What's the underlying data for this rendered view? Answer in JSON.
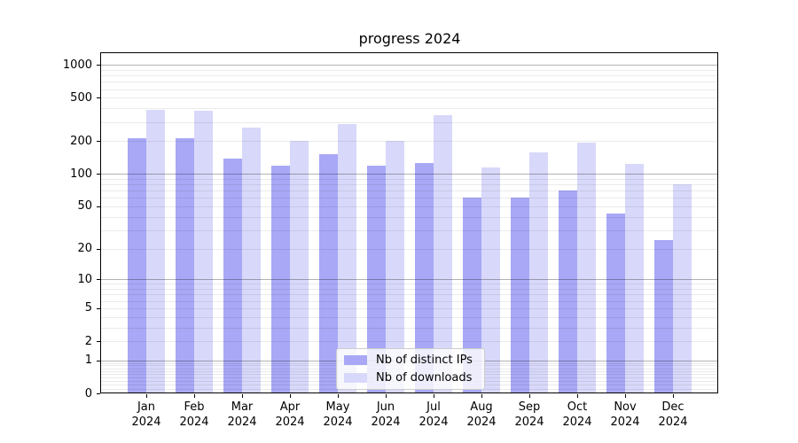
{
  "chart_data": {
    "type": "bar",
    "title": "progress 2024",
    "scale": "log1p",
    "grid": {
      "on": true,
      "major_color": "#b0b0b0",
      "minor_color": "#ebebeb"
    },
    "x_axis": {
      "categories": [
        "Jan",
        "Feb",
        "Mar",
        "Apr",
        "May",
        "Jun",
        "Jul",
        "Aug",
        "Sep",
        "Oct",
        "Nov",
        "Dec"
      ],
      "year_label": "2024"
    },
    "y_axis": {
      "ticks": [
        1000,
        500,
        200,
        100,
        50,
        20,
        10,
        5,
        2,
        1,
        0
      ],
      "range": [
        0,
        1280
      ]
    },
    "series": [
      {
        "name": "Nb of distinct IPs",
        "color": "#a8a8f6",
        "values": [
          213,
          213,
          139,
          120,
          151,
          119,
          125,
          61,
          61,
          70,
          43,
          24
        ]
      },
      {
        "name": "Nb of downloads",
        "color": "#d8d8fa",
        "values": [
          390,
          378,
          268,
          203,
          288,
          200,
          345,
          115,
          159,
          193,
          123,
          81
        ]
      }
    ],
    "legend": {
      "position": "lower center",
      "labels": [
        "Nb of distinct IPs",
        "Nb of downloads"
      ]
    }
  }
}
